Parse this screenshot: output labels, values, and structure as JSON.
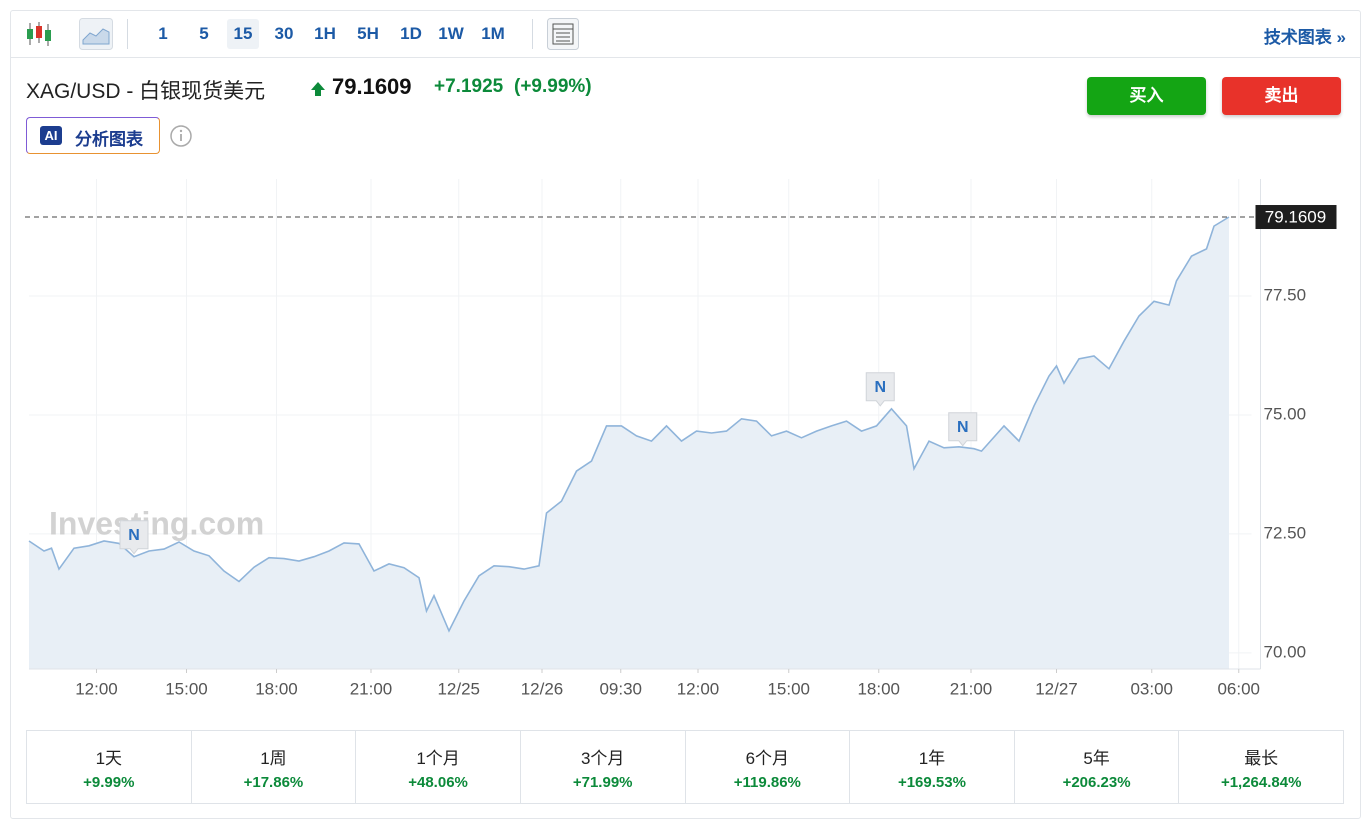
{
  "toolbar": {
    "intervals": [
      "1",
      "5",
      "15",
      "30",
      "1H",
      "5H",
      "1D",
      "1W",
      "1M"
    ],
    "active_interval": 2,
    "technical_link": "技术图表 »"
  },
  "header": {
    "instrument": "XAG/USD - 白银现货美元",
    "price": 79.1609,
    "change": "+7.1925",
    "change_pct": "(+9.99%)",
    "ai_badge": "AI",
    "ai_label": "分析图表",
    "buy": "买入",
    "sell": "卖出"
  },
  "chart_data": {
    "type": "line",
    "color": "#8fb4da",
    "fill": "#e8eff6",
    "watermark": "Investing.com",
    "x": [
      0,
      2,
      3,
      4,
      6,
      8,
      10,
      12,
      14,
      16,
      18,
      20,
      22,
      24,
      26,
      28,
      30,
      32,
      34,
      36,
      38,
      40,
      42,
      44,
      46,
      48,
      50,
      52,
      53,
      54,
      56,
      58,
      60,
      62,
      64,
      66,
      68,
      69,
      71,
      73,
      75,
      77,
      79,
      81,
      83,
      85,
      87,
      89,
      91,
      93,
      95,
      97,
      99,
      101,
      103,
      105,
      107,
      109,
      111,
      113,
      115,
      117,
      118,
      120,
      122,
      124,
      126,
      127,
      130,
      132,
      134,
      136,
      137,
      138,
      140,
      142,
      144,
      146,
      148,
      150,
      152,
      153,
      155,
      157,
      158,
      160
    ],
    "values": [
      72.35,
      72.14,
      72.2,
      71.76,
      72.2,
      72.25,
      72.35,
      72.3,
      72.02,
      72.14,
      72.18,
      72.33,
      72.14,
      72.04,
      71.72,
      71.5,
      71.8,
      72.0,
      71.98,
      71.93,
      72.02,
      72.14,
      72.31,
      72.29,
      71.72,
      71.87,
      71.79,
      71.58,
      70.88,
      71.2,
      70.46,
      71.09,
      71.62,
      71.83,
      71.81,
      71.76,
      71.83,
      72.94,
      73.19,
      73.82,
      74.03,
      74.77,
      74.77,
      74.56,
      74.45,
      74.77,
      74.45,
      74.66,
      74.62,
      74.66,
      74.92,
      74.87,
      74.56,
      74.66,
      74.52,
      74.66,
      74.77,
      74.87,
      74.66,
      74.77,
      75.13,
      74.77,
      73.87,
      74.45,
      74.31,
      74.33,
      74.29,
      74.24,
      74.77,
      74.45,
      75.19,
      75.82,
      76.03,
      75.67,
      76.18,
      76.24,
      75.97,
      76.55,
      77.08,
      77.39,
      77.31,
      77.82,
      78.34,
      78.49,
      78.97,
      79.1609
    ],
    "xlim": [
      0,
      163
    ],
    "xticks": [
      {
        "value": 9,
        "label": "12:00"
      },
      {
        "value": 21,
        "label": "15:00"
      },
      {
        "value": 33,
        "label": "18:00"
      },
      {
        "value": 45.6,
        "label": "21:00"
      },
      {
        "value": 57.3,
        "label": "12/25"
      },
      {
        "value": 68.4,
        "label": "12/26"
      },
      {
        "value": 78.9,
        "label": "09:30"
      },
      {
        "value": 89.2,
        "label": "12:00"
      },
      {
        "value": 101.3,
        "label": "15:00"
      },
      {
        "value": 113.3,
        "label": "18:00"
      },
      {
        "value": 125.6,
        "label": "21:00"
      },
      {
        "value": 137,
        "label": "12/27"
      },
      {
        "value": 149.7,
        "label": "03:00"
      },
      {
        "value": 161.3,
        "label": "06:00"
      }
    ],
    "ylim": [
      69.66,
      79.96
    ],
    "yticks": [
      {
        "value": 70,
        "label": "70.00"
      },
      {
        "value": 72.5,
        "label": "72.50"
      },
      {
        "value": 75,
        "label": "75.00"
      },
      {
        "value": 77.5,
        "label": "77.50"
      }
    ],
    "grid": true,
    "annotations": [
      {
        "x": 14,
        "text": "N"
      },
      {
        "x": 113.5,
        "text": "N"
      },
      {
        "x": 124.5,
        "text": "N"
      }
    ]
  },
  "performance": [
    {
      "period": "1天",
      "change": "+9.99%"
    },
    {
      "period": "1周",
      "change": "+17.86%"
    },
    {
      "period": "1个月",
      "change": "+48.06%"
    },
    {
      "period": "3个月",
      "change": "+71.99%"
    },
    {
      "period": "6个月",
      "change": "+119.86%"
    },
    {
      "period": "1年",
      "change": "+169.53%"
    },
    {
      "period": "5年",
      "change": "+206.23%"
    },
    {
      "period": "最长",
      "change": "+1,264.84%"
    }
  ]
}
